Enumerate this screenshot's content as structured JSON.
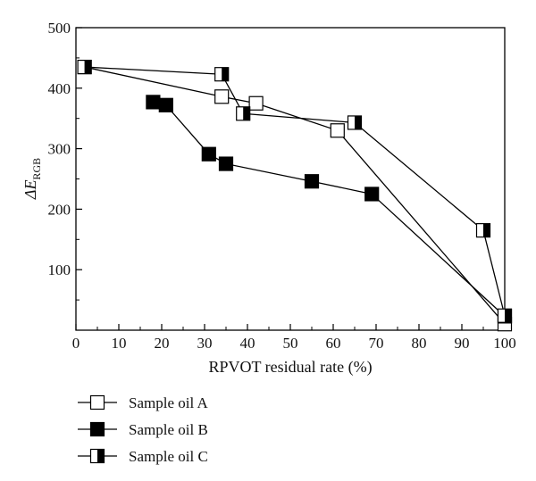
{
  "chart_data": {
    "type": "line",
    "xlabel": "RPVOT residual rate (%)",
    "ylabel_main": "ΔE",
    "ylabel_sub": "RGB",
    "xlim": [
      0,
      100
    ],
    "ylim": [
      0,
      500
    ],
    "x_ticks": [
      0,
      10,
      20,
      30,
      40,
      50,
      60,
      70,
      80,
      90,
      100
    ],
    "y_ticks": [
      100,
      200,
      300,
      400,
      500
    ],
    "grid": false,
    "legend_position": "bottom-left below plot",
    "series": [
      {
        "name": "Sample oil A",
        "marker": "open-square",
        "color": "#000000",
        "points": [
          [
            2,
            435
          ],
          [
            34,
            386
          ],
          [
            42,
            375
          ],
          [
            61,
            330
          ],
          [
            100,
            10
          ]
        ]
      },
      {
        "name": "Sample oil B",
        "marker": "filled-square",
        "color": "#000000",
        "points": [
          [
            18,
            377
          ],
          [
            21,
            372
          ],
          [
            31,
            291
          ],
          [
            35,
            275
          ],
          [
            55,
            246
          ],
          [
            69,
            225
          ],
          [
            100,
            23
          ]
        ]
      },
      {
        "name": "Sample oil C",
        "marker": "half-filled-square",
        "color": "#000000",
        "points": [
          [
            2,
            435
          ],
          [
            34,
            423
          ],
          [
            39,
            358
          ],
          [
            65,
            343
          ],
          [
            95,
            165
          ],
          [
            100,
            24
          ]
        ]
      }
    ]
  }
}
